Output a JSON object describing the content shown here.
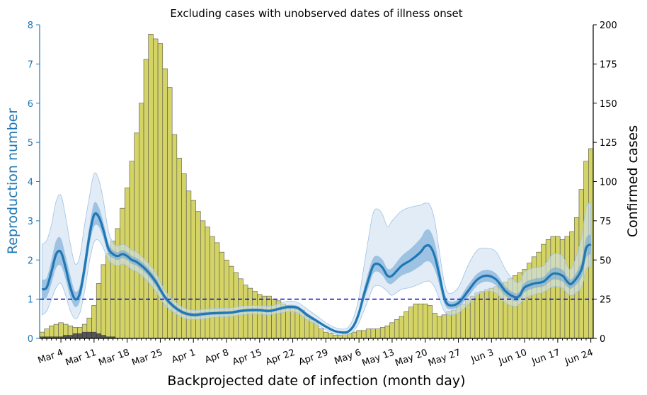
{
  "chart_data": {
    "type": "bar+line",
    "title": "Excluding cases with unobserved dates of illness onset",
    "xlabel": "Backprojected date of infection (month day)",
    "ylabel_left": "Reproduction number",
    "ylabel_right": "Confirmed cases",
    "x_tick_labels": [
      "Mar 4",
      "Mar 11",
      "Mar 18",
      "Mar 25",
      "Apr 1",
      "Apr 8",
      "Apr 15",
      "Apr 22",
      "Apr 29",
      "May 6",
      "May 13",
      "May 20",
      "May 27",
      "Jun 3",
      "Jun 10",
      "Jun 17",
      "Jun 24"
    ],
    "x_tick_day_index": [
      4,
      11,
      18,
      25,
      32,
      39,
      46,
      53,
      60,
      67,
      74,
      81,
      88,
      95,
      102,
      109,
      116
    ],
    "start_day_index": 0,
    "end_day_index": 116,
    "y_left_ticks": [
      0,
      1,
      2,
      3,
      4,
      5,
      6,
      7,
      8
    ],
    "y_left_lim": [
      0,
      8
    ],
    "y_right_ticks": [
      0,
      25,
      50,
      75,
      100,
      125,
      150,
      175,
      200
    ],
    "y_right_lim": [
      0,
      200
    ],
    "threshold_line": 1,
    "bar_color": "#d4d466",
    "dark_bar_color": "#555555",
    "line_color": "#1f77b4",
    "threshold_color": "#0000cc",
    "confirmed_cases": [
      4,
      6,
      8,
      9,
      10,
      9,
      8,
      7,
      7,
      9,
      13,
      21,
      35,
      47,
      54,
      62,
      70,
      83,
      96,
      113,
      131,
      150,
      178,
      194,
      191,
      188,
      172,
      160,
      130,
      115,
      105,
      94,
      88,
      81,
      75,
      71,
      65,
      61,
      55,
      50,
      46,
      42,
      38,
      34,
      32,
      30,
      28,
      27,
      27,
      25,
      24,
      22,
      21,
      20,
      19,
      18,
      14,
      12,
      10,
      6,
      4,
      3,
      2,
      2,
      3,
      3,
      4,
      5,
      5,
      6,
      6,
      6,
      7,
      8,
      10,
      12,
      14,
      17,
      20,
      22,
      22,
      22,
      21,
      16,
      14,
      15,
      17,
      18,
      20,
      22,
      25,
      27,
      29,
      30,
      31,
      32,
      33,
      35,
      36,
      38,
      40,
      42,
      44,
      48,
      52,
      55,
      60,
      63,
      65,
      65,
      63,
      65,
      68,
      77,
      95,
      113,
      121
    ],
    "dark_cases": [
      1,
      1,
      1,
      1,
      1,
      2,
      2,
      3,
      3,
      4,
      4,
      4,
      3,
      2,
      1,
      1,
      0,
      0
    ],
    "reproduction_number": {
      "day_index": [
        0,
        1,
        2,
        3,
        4,
        5,
        6,
        7,
        8,
        9,
        10,
        11,
        12,
        13,
        14,
        15,
        16,
        17,
        18,
        19,
        20,
        22,
        24,
        26,
        28,
        30,
        32,
        34,
        36,
        38,
        40,
        42,
        44,
        46,
        48,
        50,
        52,
        54,
        56,
        58,
        60,
        62,
        64,
        65,
        66,
        67,
        68,
        69,
        70,
        71,
        72,
        73,
        74,
        76,
        78,
        80,
        81,
        82,
        83,
        84,
        85,
        86,
        88,
        90,
        92,
        94,
        96,
        98,
        100,
        101,
        102,
        104,
        106,
        108,
        110,
        111,
        112,
        114,
        115,
        116
      ],
      "median": [
        1.25,
        1.3,
        1.7,
        2.15,
        2.2,
        1.8,
        1.3,
        1.0,
        1.15,
        1.8,
        2.6,
        3.15,
        3.1,
        2.75,
        2.3,
        2.15,
        2.1,
        2.15,
        2.1,
        2.0,
        1.95,
        1.75,
        1.45,
        1.05,
        0.8,
        0.65,
        0.6,
        0.62,
        0.64,
        0.65,
        0.66,
        0.7,
        0.72,
        0.72,
        0.7,
        0.75,
        0.8,
        0.78,
        0.6,
        0.45,
        0.3,
        0.18,
        0.15,
        0.2,
        0.35,
        0.65,
        1.1,
        1.5,
        1.85,
        1.9,
        1.8,
        1.6,
        1.6,
        1.85,
        2.0,
        2.2,
        2.35,
        2.35,
        2.1,
        1.6,
        1.05,
        0.85,
        0.9,
        1.2,
        1.5,
        1.6,
        1.5,
        1.2,
        1.05,
        1.1,
        1.3,
        1.4,
        1.45,
        1.65,
        1.6,
        1.45,
        1.4,
        1.75,
        2.3,
        2.4
      ],
      "iqr_low": [
        1.0,
        1.05,
        1.4,
        1.8,
        1.85,
        1.5,
        1.05,
        0.8,
        0.95,
        1.55,
        2.35,
        2.85,
        2.85,
        2.55,
        2.15,
        2.05,
        2.0,
        2.05,
        2.0,
        1.9,
        1.85,
        1.65,
        1.35,
        0.98,
        0.74,
        0.6,
        0.55,
        0.57,
        0.6,
        0.61,
        0.62,
        0.66,
        0.68,
        0.68,
        0.66,
        0.71,
        0.75,
        0.73,
        0.55,
        0.41,
        0.27,
        0.15,
        0.12,
        0.16,
        0.28,
        0.55,
        0.95,
        1.3,
        1.65,
        1.7,
        1.6,
        1.42,
        1.4,
        1.6,
        1.7,
        1.85,
        1.95,
        1.95,
        1.75,
        1.35,
        0.9,
        0.75,
        0.8,
        1.05,
        1.35,
        1.45,
        1.35,
        1.08,
        0.95,
        1.0,
        1.18,
        1.28,
        1.33,
        1.5,
        1.45,
        1.32,
        1.28,
        1.55,
        2.05,
        2.15
      ],
      "iqr_high": [
        1.5,
        1.55,
        2.0,
        2.5,
        2.55,
        2.1,
        1.6,
        1.2,
        1.35,
        2.05,
        2.85,
        3.45,
        3.35,
        2.95,
        2.45,
        2.25,
        2.2,
        2.25,
        2.2,
        2.1,
        2.05,
        1.85,
        1.55,
        1.12,
        0.86,
        0.7,
        0.65,
        0.67,
        0.68,
        0.69,
        0.7,
        0.74,
        0.76,
        0.76,
        0.74,
        0.79,
        0.85,
        0.83,
        0.65,
        0.49,
        0.33,
        0.21,
        0.18,
        0.24,
        0.42,
        0.75,
        1.25,
        1.7,
        2.05,
        2.1,
        2.0,
        1.78,
        1.8,
        2.1,
        2.3,
        2.55,
        2.75,
        2.75,
        2.45,
        1.85,
        1.2,
        0.95,
        1.0,
        1.35,
        1.65,
        1.75,
        1.65,
        1.32,
        1.15,
        1.2,
        1.42,
        1.52,
        1.57,
        1.8,
        1.75,
        1.58,
        1.52,
        1.95,
        2.55,
        2.65
      ],
      "ci_low": [
        0.6,
        0.7,
        1.0,
        1.3,
        1.4,
        1.1,
        0.7,
        0.5,
        0.65,
        1.2,
        1.95,
        2.45,
        2.5,
        2.3,
        2.0,
        1.9,
        1.85,
        1.9,
        1.85,
        1.75,
        1.7,
        1.5,
        1.2,
        0.85,
        0.65,
        0.52,
        0.48,
        0.5,
        0.53,
        0.55,
        0.56,
        0.6,
        0.62,
        0.62,
        0.6,
        0.64,
        0.68,
        0.65,
        0.48,
        0.35,
        0.22,
        0.11,
        0.08,
        0.11,
        0.2,
        0.4,
        0.7,
        1.0,
        1.3,
        1.35,
        1.3,
        1.2,
        1.1,
        1.25,
        1.3,
        1.4,
        1.45,
        1.45,
        1.3,
        1.0,
        0.7,
        0.6,
        0.65,
        0.85,
        1.1,
        1.2,
        1.15,
        0.9,
        0.82,
        0.88,
        1.02,
        1.12,
        1.18,
        1.32,
        1.28,
        1.15,
        1.1,
        1.3,
        1.75,
        1.85
      ],
      "ci_high": [
        2.4,
        2.5,
        2.9,
        3.5,
        3.65,
        3.1,
        2.4,
        1.9,
        2.1,
        2.9,
        3.6,
        4.2,
        4.05,
        3.5,
        2.75,
        2.45,
        2.35,
        2.4,
        2.35,
        2.25,
        2.2,
        1.98,
        1.68,
        1.22,
        0.95,
        0.78,
        0.72,
        0.74,
        0.76,
        0.77,
        0.78,
        0.82,
        0.84,
        0.84,
        0.82,
        0.88,
        0.95,
        0.92,
        0.75,
        0.58,
        0.4,
        0.27,
        0.24,
        0.32,
        0.58,
        1.05,
        1.8,
        2.55,
        3.2,
        3.3,
        3.15,
        2.85,
        3.0,
        3.25,
        3.35,
        3.4,
        3.45,
        3.4,
        3.0,
        2.2,
        1.45,
        1.15,
        1.3,
        1.85,
        2.25,
        2.3,
        2.2,
        1.75,
        1.45,
        1.45,
        1.7,
        1.8,
        1.85,
        2.15,
        2.1,
        1.85,
        1.8,
        2.55,
        3.35,
        3.45
      ]
    }
  }
}
